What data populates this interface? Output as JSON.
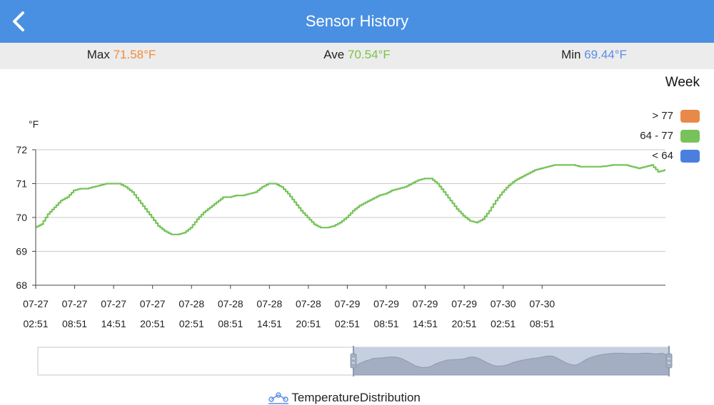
{
  "header": {
    "title": "Sensor History",
    "back_icon": "chevron-left-icon"
  },
  "stats": {
    "max": {
      "label": "Max",
      "value": "71.58°F",
      "color": "#f28c38"
    },
    "ave": {
      "label": "Ave",
      "value": "70.54°F",
      "color": "#7cc24a"
    },
    "min": {
      "label": "Min",
      "value": "69.44°F",
      "color": "#5b8ee6"
    }
  },
  "period": "Week",
  "legend": [
    {
      "label": "> 77",
      "color": "#e8894a"
    },
    {
      "label": "64 - 77",
      "color": "#77c35a"
    },
    {
      "label": "< 64",
      "color": "#4a7fe0"
    }
  ],
  "footer": {
    "label": "TemperatureDistribution",
    "icon": "distribution-icon"
  },
  "chart_data": {
    "type": "line",
    "ylabel": "°F",
    "ylim": [
      68,
      72
    ],
    "yticks": [
      68,
      69,
      70,
      71,
      72
    ],
    "x_start_hours": 0,
    "x_end_hours": 97,
    "xticks": [
      {
        "hours": 0,
        "date": "07-27",
        "time": "02:51"
      },
      {
        "hours": 6,
        "date": "07-27",
        "time": "08:51"
      },
      {
        "hours": 12,
        "date": "07-27",
        "time": "14:51"
      },
      {
        "hours": 18,
        "date": "07-27",
        "time": "20:51"
      },
      {
        "hours": 24,
        "date": "07-28",
        "time": "02:51"
      },
      {
        "hours": 30,
        "date": "07-28",
        "time": "08:51"
      },
      {
        "hours": 36,
        "date": "07-28",
        "time": "14:51"
      },
      {
        "hours": 42,
        "date": "07-28",
        "time": "20:51"
      },
      {
        "hours": 48,
        "date": "07-29",
        "time": "02:51"
      },
      {
        "hours": 54,
        "date": "07-29",
        "time": "08:51"
      },
      {
        "hours": 60,
        "date": "07-29",
        "time": "14:51"
      },
      {
        "hours": 66,
        "date": "07-29",
        "time": "20:51"
      },
      {
        "hours": 72,
        "date": "07-30",
        "time": "02:51"
      },
      {
        "hours": 78,
        "date": "07-30",
        "time": "08:51"
      }
    ],
    "grid": true,
    "series": [
      {
        "color": "#77c35a",
        "points": [
          [
            0,
            69.7
          ],
          [
            1,
            69.8
          ],
          [
            2,
            70.1
          ],
          [
            3,
            70.3
          ],
          [
            4,
            70.5
          ],
          [
            5,
            70.6
          ],
          [
            6,
            70.8
          ],
          [
            7,
            70.85
          ],
          [
            8,
            70.85
          ],
          [
            9,
            70.9
          ],
          [
            10,
            70.95
          ],
          [
            11,
            71.0
          ],
          [
            12,
            71.0
          ],
          [
            13,
            71.0
          ],
          [
            14,
            70.9
          ],
          [
            15,
            70.75
          ],
          [
            16,
            70.5
          ],
          [
            17,
            70.25
          ],
          [
            18,
            70.0
          ],
          [
            19,
            69.75
          ],
          [
            20,
            69.6
          ],
          [
            21,
            69.5
          ],
          [
            22,
            69.5
          ],
          [
            23,
            69.55
          ],
          [
            24,
            69.7
          ],
          [
            25,
            69.95
          ],
          [
            26,
            70.15
          ],
          [
            27,
            70.3
          ],
          [
            28,
            70.45
          ],
          [
            29,
            70.6
          ],
          [
            30,
            70.6
          ],
          [
            31,
            70.65
          ],
          [
            32,
            70.65
          ],
          [
            33,
            70.7
          ],
          [
            34,
            70.75
          ],
          [
            35,
            70.9
          ],
          [
            36,
            71.0
          ],
          [
            37,
            71.0
          ],
          [
            38,
            70.9
          ],
          [
            39,
            70.7
          ],
          [
            40,
            70.45
          ],
          [
            41,
            70.2
          ],
          [
            42,
            70.0
          ],
          [
            43,
            69.8
          ],
          [
            44,
            69.7
          ],
          [
            45,
            69.7
          ],
          [
            46,
            69.75
          ],
          [
            47,
            69.85
          ],
          [
            48,
            70.0
          ],
          [
            49,
            70.2
          ],
          [
            50,
            70.35
          ],
          [
            51,
            70.45
          ],
          [
            52,
            70.55
          ],
          [
            53,
            70.65
          ],
          [
            54,
            70.7
          ],
          [
            55,
            70.8
          ],
          [
            56,
            70.85
          ],
          [
            57,
            70.9
          ],
          [
            58,
            71.0
          ],
          [
            59,
            71.1
          ],
          [
            60,
            71.15
          ],
          [
            61,
            71.15
          ],
          [
            62,
            71.0
          ],
          [
            63,
            70.75
          ],
          [
            64,
            70.5
          ],
          [
            65,
            70.25
          ],
          [
            66,
            70.05
          ],
          [
            67,
            69.9
          ],
          [
            68,
            69.85
          ],
          [
            69,
            69.95
          ],
          [
            70,
            70.2
          ],
          [
            71,
            70.5
          ],
          [
            72,
            70.75
          ],
          [
            73,
            70.95
          ],
          [
            74,
            71.1
          ],
          [
            75,
            71.2
          ],
          [
            76,
            71.3
          ],
          [
            77,
            71.4
          ],
          [
            78,
            71.45
          ],
          [
            79,
            71.5
          ],
          [
            80,
            71.55
          ],
          [
            81,
            71.55
          ],
          [
            82,
            71.55
          ],
          [
            83,
            71.55
          ],
          [
            84,
            71.5
          ],
          [
            85,
            71.5
          ],
          [
            86,
            71.5
          ],
          [
            87,
            71.5
          ],
          [
            88,
            71.52
          ],
          [
            89,
            71.55
          ],
          [
            90,
            71.55
          ],
          [
            91,
            71.55
          ],
          [
            92,
            71.5
          ],
          [
            93,
            71.45
          ],
          [
            94,
            71.5
          ],
          [
            95,
            71.55
          ],
          [
            96,
            71.35
          ],
          [
            97,
            71.4
          ]
        ]
      }
    ],
    "zoom_window": {
      "start_percent": 50,
      "end_percent": 100
    }
  }
}
